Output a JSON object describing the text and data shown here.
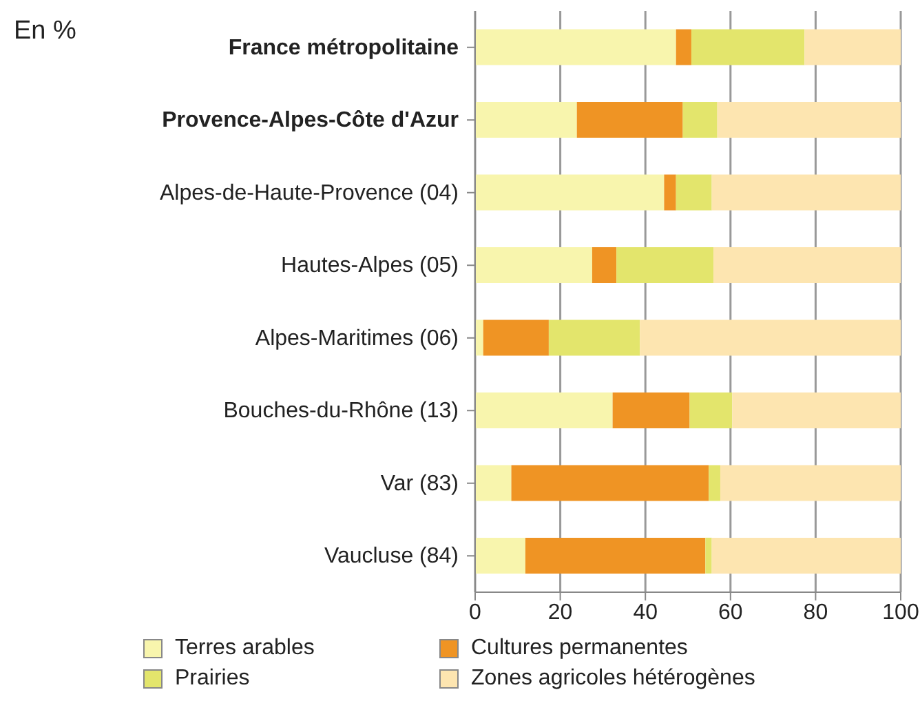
{
  "chart_data": {
    "type": "bar",
    "orientation": "horizontal",
    "stacked": true,
    "title": "En %",
    "categories": [
      "France métropolitaine",
      "Provence-Alpes-Côte d'Azur",
      "Alpes-de-Haute-Provence (04)",
      "Hautes-Alpes (05)",
      "Alpes-Maritimes (06)",
      "Bouches-du-Rhône (13)",
      "Var (83)",
      "Vaucluse (84)"
    ],
    "series": [
      {
        "name": "Terres arables",
        "color": "#f8f5ad",
        "values": [
          47.2,
          23.9,
          44.4,
          27.5,
          1.9,
          32.3,
          8.5,
          11.8
        ]
      },
      {
        "name": "Cultures permanentes",
        "color": "#ef9424",
        "values": [
          3.6,
          24.9,
          2.8,
          5.7,
          15.4,
          18.1,
          46.4,
          42.3
        ]
      },
      {
        "name": "Prairies",
        "color": "#e3e56c",
        "values": [
          26.6,
          8.1,
          8.4,
          22.8,
          21.4,
          10.0,
          2.7,
          1.5
        ]
      },
      {
        "name": "Zones agricoles hétérogènes",
        "color": "#fde5b0",
        "values": [
          22.6,
          43.1,
          44.4,
          44.0,
          61.3,
          39.6,
          42.4,
          44.4
        ]
      }
    ],
    "xlim": [
      0,
      100
    ],
    "xticks": [
      0,
      20,
      40,
      60,
      80,
      100
    ],
    "grid": "x",
    "legend": "bottom"
  }
}
